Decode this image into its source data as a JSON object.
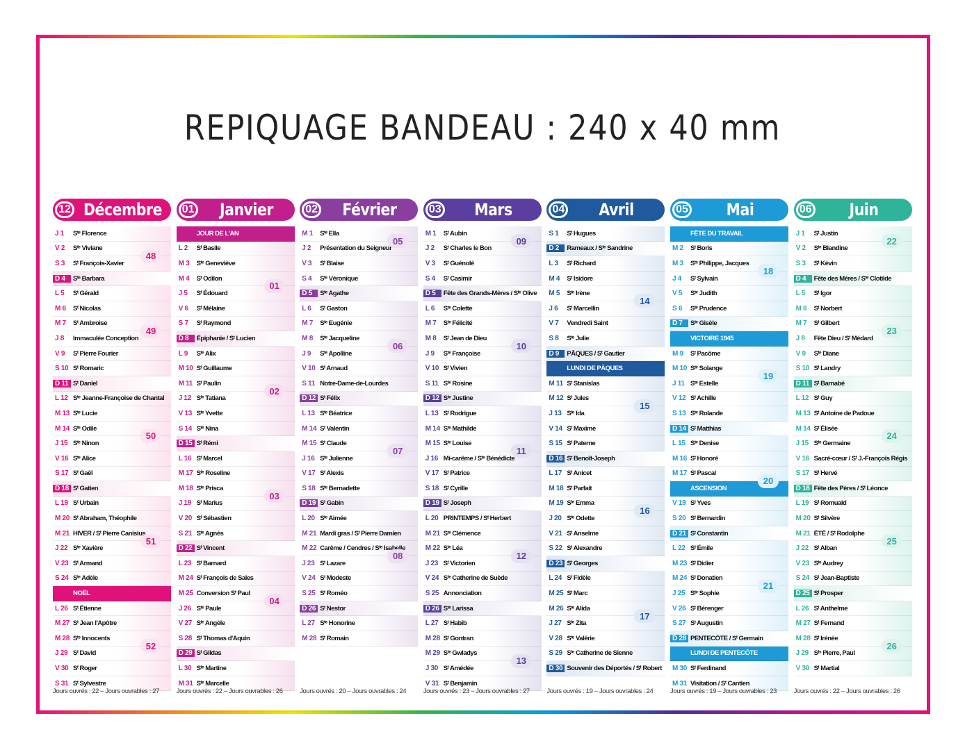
{
  "header": {
    "title": "REPIQUAGE BANDEAU : 240 x 40 mm"
  },
  "months": [
    {
      "num": "12",
      "name": "Décembre",
      "color": "#e0127a",
      "light": "#fbe3ef",
      "weeks": [
        {
          "n": "48",
          "row": 1
        },
        {
          "n": "49",
          "row": 6
        },
        {
          "n": "50",
          "row": 13
        },
        {
          "n": "51",
          "row": 20
        },
        {
          "n": "52",
          "row": 27
        }
      ],
      "days": [
        [
          "J 1",
          "Sᵗᵉ Florence"
        ],
        [
          "V 2",
          "Sᵗᵉ Viviane"
        ],
        [
          "S 3",
          "Sᵗ François-Xavier"
        ],
        [
          "D 4",
          "Sᵗᵉ Barbara"
        ],
        [
          "L 5",
          "Sᵗ Gérald"
        ],
        [
          "M 6",
          "Sᵗ Nicolas"
        ],
        [
          "M 7",
          "Sᵗ Ambroise"
        ],
        [
          "J 8",
          "Immaculée Conception"
        ],
        [
          "V 9",
          "Sᵗ Pierre Fourier"
        ],
        [
          "S 10",
          "Sᵗ Romaric"
        ],
        [
          "D 11",
          "Sᵗ Daniel"
        ],
        [
          "L 12",
          "Sᵗᵉ Jeanne-Françoise de Chantal"
        ],
        [
          "M 13",
          "Sᵗᵉ Lucie"
        ],
        [
          "M 14",
          "Sᵗᵉ Odile"
        ],
        [
          "J 15",
          "Sᵗᵉ Ninon"
        ],
        [
          "V 16",
          "Sᵗᵉ Alice"
        ],
        [
          "S 17",
          "Sᵗ Gaël"
        ],
        [
          "D 18",
          "Sᵗ Gatien"
        ],
        [
          "L 19",
          "Sᵗ Urbain"
        ],
        [
          "M 20",
          "Sᵗ Abraham, Théophile"
        ],
        [
          "M 21",
          "HIVER / Sᵗ Pierre Canisius"
        ],
        [
          "J 22",
          "Sᵗᵉ Xavière"
        ],
        [
          "V 23",
          "Sᵗ Armand"
        ],
        [
          "S 24",
          "Sᵗᵉ Adèle"
        ],
        [
          "D 25",
          "NOËL"
        ],
        [
          "L 26",
          "Sᵗ Étienne"
        ],
        [
          "M 27",
          "Sᵗ Jean l'Apôtre"
        ],
        [
          "M 28",
          "Sᵗˢ Innocents"
        ],
        [
          "J 29",
          "Sᵗ David"
        ],
        [
          "V 30",
          "Sᵗ Roger"
        ],
        [
          "S 31",
          "Sᵗ Sylvestre"
        ]
      ],
      "sundays": [
        3,
        10,
        17
      ],
      "feast": [
        24
      ],
      "footer": "Jours ouvrés : 22 – Jours ouvrables : 27"
    },
    {
      "num": "01",
      "name": "Janvier",
      "color": "#c21f8c",
      "light": "#f6e0ee",
      "weeks": [
        {
          "n": "01",
          "row": 3
        },
        {
          "n": "02",
          "row": 10
        },
        {
          "n": "03",
          "row": 17
        },
        {
          "n": "04",
          "row": 24
        }
      ],
      "days": [
        [
          "D 1",
          "JOUR DE L'AN"
        ],
        [
          "L 2",
          "Sᵗ Basile"
        ],
        [
          "M 3",
          "Sᵗᵉ Geneviève"
        ],
        [
          "M 4",
          "Sᵗ Odilon"
        ],
        [
          "J 5",
          "Sᵗ Édouard"
        ],
        [
          "V 6",
          "Sᵗ Mélaine"
        ],
        [
          "S 7",
          "Sᵗ Raymond"
        ],
        [
          "D 8",
          "Épiphanie / Sᵗ Lucien"
        ],
        [
          "L 9",
          "Sᵗᵉ Alix"
        ],
        [
          "M 10",
          "Sᵗ Guillaume"
        ],
        [
          "M 11",
          "Sᵗ Paulin"
        ],
        [
          "J 12",
          "Sᵗᵉ Tatiana"
        ],
        [
          "V 13",
          "Sᵗᵉ Yvette"
        ],
        [
          "S 14",
          "Sᵗᵉ Nina"
        ],
        [
          "D 15",
          "Sᵗ Rémi"
        ],
        [
          "L 16",
          "Sᵗ Marcel"
        ],
        [
          "M 17",
          "Sᵗᵉ Roseline"
        ],
        [
          "M 18",
          "Sᵗᵉ Prisca"
        ],
        [
          "J 19",
          "Sᵗ Marius"
        ],
        [
          "V 20",
          "Sᵗ Sébastien"
        ],
        [
          "S 21",
          "Sᵗᵉ Agnès"
        ],
        [
          "D 22",
          "Sᵗ Vincent"
        ],
        [
          "L 23",
          "Sᵗ Barnard"
        ],
        [
          "M 24",
          "Sᵗ François de Sales"
        ],
        [
          "M 25",
          "Conversion Sᵗ Paul"
        ],
        [
          "J 26",
          "Sᵗᵉ Paule"
        ],
        [
          "V 27",
          "Sᵗᵉ Angèle"
        ],
        [
          "S 28",
          "Sᵗ Thomas d'Aquin"
        ],
        [
          "D 29",
          "Sᵗ Gildas"
        ],
        [
          "L 30",
          "Sᵗᵉ Martine"
        ],
        [
          "M 31",
          "Sᵗᵉ Marcelle"
        ]
      ],
      "sundays": [
        7,
        14,
        21,
        28
      ],
      "feast": [
        0
      ],
      "footer": "Jours ouvrés : 22 – Jours ouvrables : 26"
    },
    {
      "num": "02",
      "name": "Février",
      "color": "#8a3fa0",
      "light": "#ece2f1",
      "weeks": [
        {
          "n": "05",
          "row": 0
        },
        {
          "n": "06",
          "row": 7
        },
        {
          "n": "07",
          "row": 14
        },
        {
          "n": "08",
          "row": 21
        }
      ],
      "days": [
        [
          "M 1",
          "Sᵗᵉ Ella"
        ],
        [
          "J 2",
          "Présentation du Seigneur"
        ],
        [
          "V 3",
          "Sᵗ Blaise"
        ],
        [
          "S 4",
          "Sᵗᵉ Véronique"
        ],
        [
          "D 5",
          "Sᵗᵉ Agathe"
        ],
        [
          "L 6",
          "Sᵗ Gaston"
        ],
        [
          "M 7",
          "Sᵗᵉ Eugénie"
        ],
        [
          "M 8",
          "Sᵗᵉ Jacqueline"
        ],
        [
          "J 9",
          "Sᵗᵉ Apolline"
        ],
        [
          "V 10",
          "Sᵗ Arnaud"
        ],
        [
          "S 11",
          "Notre-Dame-de-Lourdes"
        ],
        [
          "D 12",
          "Sᵗ Félix"
        ],
        [
          "L 13",
          "Sᵗᵉ Béatrice"
        ],
        [
          "M 14",
          "Sᵗ Valentin"
        ],
        [
          "M 15",
          "Sᵗ Claude"
        ],
        [
          "J 16",
          "Sᵗᵉ Julienne"
        ],
        [
          "V 17",
          "Sᵗ Alexis"
        ],
        [
          "S 18",
          "Sᵗᵉ Bernadette"
        ],
        [
          "D 19",
          "Sᵗ Gabin"
        ],
        [
          "L 20",
          "Sᵗᵉ Aimée"
        ],
        [
          "M 21",
          "Mardi gras / Sᵗ Pierre Damien"
        ],
        [
          "M 22",
          "Carême / Cendres / Sᵗᵉ Isabelle"
        ],
        [
          "J 23",
          "Sᵗ Lazare"
        ],
        [
          "V 24",
          "Sᵗ Modeste"
        ],
        [
          "S 25",
          "Sᵗ Roméo"
        ],
        [
          "D 26",
          "Sᵗ Nestor"
        ],
        [
          "L 27",
          "Sᵗᵉ Honorine"
        ],
        [
          "M 28",
          "Sᵗ Romain"
        ]
      ],
      "sundays": [
        4,
        11,
        18,
        25
      ],
      "feast": [],
      "footer": "Jours ouvrés : 20 – Jours ouvrables : 24"
    },
    {
      "num": "03",
      "name": "Mars",
      "color": "#5a3fa0",
      "light": "#e5e1f1",
      "weeks": [
        {
          "n": "09",
          "row": 0
        },
        {
          "n": "10",
          "row": 7
        },
        {
          "n": "11",
          "row": 14
        },
        {
          "n": "12",
          "row": 21
        },
        {
          "n": "13",
          "row": 28
        }
      ],
      "days": [
        [
          "M 1",
          "Sᵗ Aubin"
        ],
        [
          "J 2",
          "Sᵗ Charles le Bon"
        ],
        [
          "V 3",
          "Sᵗ Guénolé"
        ],
        [
          "S 4",
          "Sᵗ Casimir"
        ],
        [
          "D 5",
          "Fête des Grands-Mères / Sᵗᵉ Olive"
        ],
        [
          "L 6",
          "Sᵗᵉ Colette"
        ],
        [
          "M 7",
          "Sᵗᵉ Félicité"
        ],
        [
          "M 8",
          "Sᵗ Jean de Dieu"
        ],
        [
          "J 9",
          "Sᵗᵉ Françoise"
        ],
        [
          "V 10",
          "Sᵗ Vivien"
        ],
        [
          "S 11",
          "Sᵗᵉ Rosine"
        ],
        [
          "D 12",
          "Sᵗᵉ Justine"
        ],
        [
          "L 13",
          "Sᵗ Rodrigue"
        ],
        [
          "M 14",
          "Sᵗᵉ Mathilde"
        ],
        [
          "M 15",
          "Sᵗᵉ Louise"
        ],
        [
          "J 16",
          "Mi-carême / Sᵗᵉ Bénédicte"
        ],
        [
          "V 17",
          "Sᵗ Patrice"
        ],
        [
          "S 18",
          "Sᵗ Cyrille"
        ],
        [
          "D 19",
          "Sᵗ Joseph"
        ],
        [
          "L 20",
          "PRINTEMPS / Sᵗ Herbert"
        ],
        [
          "M 21",
          "Sᵗᵉ Clémence"
        ],
        [
          "M 22",
          "Sᵗᵉ Léa"
        ],
        [
          "J 23",
          "Sᵗ Victorien"
        ],
        [
          "V 24",
          "Sᵗᵉ Catherine de Suède"
        ],
        [
          "S 25",
          "Annonciation"
        ],
        [
          "D 26",
          "Sᵗᵉ Larissa"
        ],
        [
          "L 27",
          "Sᵗ Habib"
        ],
        [
          "M 28",
          "Sᵗ Gontran"
        ],
        [
          "M 29",
          "Sᵗᵉ Gwladys"
        ],
        [
          "J 30",
          "Sᵗ Amédée"
        ],
        [
          "V 31",
          "Sᵗ Benjamin"
        ]
      ],
      "sundays": [
        4,
        11,
        18,
        25
      ],
      "feast": [],
      "footer": "Jours ouvrés : 23 – Jours ouvrables : 27"
    },
    {
      "num": "04",
      "name": "Avril",
      "color": "#1f5a9e",
      "light": "#dfe8f3",
      "weeks": [
        {
          "n": "14",
          "row": 4
        },
        {
          "n": "15",
          "row": 11
        },
        {
          "n": "16",
          "row": 18
        },
        {
          "n": "17",
          "row": 25
        }
      ],
      "days": [
        [
          "S 1",
          "Sᵗ Hugues"
        ],
        [
          "D 2",
          "Rameaux / Sᵗᵉ Sandrine"
        ],
        [
          "L 3",
          "Sᵗ Richard"
        ],
        [
          "M 4",
          "Sᵗ Isidore"
        ],
        [
          "M 5",
          "Sᵗᵉ Irène"
        ],
        [
          "J 6",
          "Sᵗ Marcellin"
        ],
        [
          "V 7",
          "Vendredi Saint"
        ],
        [
          "S 8",
          "Sᵗᵉ Julie"
        ],
        [
          "D 9",
          "PÂQUES / Sᵗ Gautier"
        ],
        [
          "L 10",
          "LUNDI DE PÂQUES"
        ],
        [
          "M 11",
          "Sᵗ Stanislas"
        ],
        [
          "M 12",
          "Sᵗ Jules"
        ],
        [
          "J 13",
          "Sᵗᵉ Ida"
        ],
        [
          "V 14",
          "Sᵗ Maxime"
        ],
        [
          "S 15",
          "Sᵗ Paterne"
        ],
        [
          "D 16",
          "Sᵗ Benoît-Joseph"
        ],
        [
          "L 17",
          "Sᵗ Anicet"
        ],
        [
          "M 18",
          "Sᵗ Parfait"
        ],
        [
          "M 19",
          "Sᵗᵉ Emma"
        ],
        [
          "J 20",
          "Sᵗᵉ Odette"
        ],
        [
          "V 21",
          "Sᵗ Anselme"
        ],
        [
          "S 22",
          "Sᵗ Alexandre"
        ],
        [
          "D 23",
          "Sᵗ Georges"
        ],
        [
          "L 24",
          "Sᵗ Fidèle"
        ],
        [
          "M 25",
          "Sᵗ Marc"
        ],
        [
          "M 26",
          "Sᵗᵉ Alida"
        ],
        [
          "J 27",
          "Sᵗᵉ Zita"
        ],
        [
          "V 28",
          "Sᵗᵉ Valérie"
        ],
        [
          "S 29",
          "Sᵗᵉ Catherine de Sienne"
        ],
        [
          "D 30",
          "Souvenir des Déportés / Sᵗ Robert"
        ]
      ],
      "sundays": [
        1,
        8,
        15,
        22,
        29
      ],
      "feast": [
        9
      ],
      "footer": "Jours ouvrés : 19 – Jours ouvrables : 24"
    },
    {
      "num": "05",
      "name": "Mai",
      "color": "#1e9ad6",
      "light": "#dff1fa",
      "weeks": [
        {
          "n": "18",
          "row": 2
        },
        {
          "n": "19",
          "row": 9
        },
        {
          "n": "20",
          "row": 16
        },
        {
          "n": "21",
          "row": 23
        }
      ],
      "days": [
        [
          "L 1",
          "FÊTE DU TRAVAIL"
        ],
        [
          "M 2",
          "Sᵗ Boris"
        ],
        [
          "M 3",
          "Sᵗˢ Philippe, Jacques"
        ],
        [
          "J 4",
          "Sᵗ Sylvain"
        ],
        [
          "V 5",
          "Sᵗᵉ Judith"
        ],
        [
          "S 6",
          "Sᵗᵉ Prudence"
        ],
        [
          "D 7",
          "Sᵗᵉ Gisèle"
        ],
        [
          "L 8",
          "VICTOIRE 1945"
        ],
        [
          "M 9",
          "Sᵗ Pacôme"
        ],
        [
          "M 10",
          "Sᵗᵉ Solange"
        ],
        [
          "J 11",
          "Sᵗᵉ Estelle"
        ],
        [
          "V 12",
          "Sᵗ Achille"
        ],
        [
          "S 13",
          "Sᵗᵉ Rolande"
        ],
        [
          "D 14",
          "Sᵗ Matthias"
        ],
        [
          "L 15",
          "Sᵗᵉ Denise"
        ],
        [
          "M 16",
          "Sᵗ Honoré"
        ],
        [
          "M 17",
          "Sᵗ Pascal"
        ],
        [
          "J 18",
          "ASCENSION"
        ],
        [
          "V 19",
          "Sᵗ Yves"
        ],
        [
          "S 20",
          "Sᵗ Bernardin"
        ],
        [
          "D 21",
          "Sᵗ Constantin"
        ],
        [
          "L 22",
          "Sᵗ Émile"
        ],
        [
          "M 23",
          "Sᵗ Didier"
        ],
        [
          "M 24",
          "Sᵗ Donatien"
        ],
        [
          "J 25",
          "Sᵗᵉ Sophie"
        ],
        [
          "V 26",
          "Sᵗ Bérenger"
        ],
        [
          "S 27",
          "Sᵗ Augustin"
        ],
        [
          "D 28",
          "PENTECÔTE / Sᵗ Germain"
        ],
        [
          "L 29",
          "LUNDI DE PENTECÔTE"
        ],
        [
          "M 30",
          "Sᵗ Ferdinand"
        ],
        [
          "M 31",
          "Visitation / Sᵗ Cantien"
        ]
      ],
      "sundays": [
        6,
        13,
        20,
        27
      ],
      "feast": [
        0,
        7,
        17,
        28
      ],
      "footer": "Jours ouvrés : 19 – Jours ouvrables : 23"
    },
    {
      "num": "06",
      "name": "Juin",
      "color": "#2fb39a",
      "light": "#ddf3ee",
      "weeks": [
        {
          "n": "22",
          "row": 0
        },
        {
          "n": "23",
          "row": 6
        },
        {
          "n": "24",
          "row": 13
        },
        {
          "n": "25",
          "row": 20
        },
        {
          "n": "26",
          "row": 27
        }
      ],
      "days": [
        [
          "J 1",
          "Sᵗ Justin"
        ],
        [
          "V 2",
          "Sᵗᵉ Blandine"
        ],
        [
          "S 3",
          "Sᵗ Kévin"
        ],
        [
          "D 4",
          "Fête des Mères / Sᵗᵉ Clotilde"
        ],
        [
          "L 5",
          "Sᵗ Igor"
        ],
        [
          "M 6",
          "Sᵗ Norbert"
        ],
        [
          "M 7",
          "Sᵗ Gilbert"
        ],
        [
          "J 8",
          "Fête Dieu / Sᵗ Médard"
        ],
        [
          "V 9",
          "Sᵗᵉ Diane"
        ],
        [
          "S 10",
          "Sᵗ Landry"
        ],
        [
          "D 11",
          "Sᵗ Barnabé"
        ],
        [
          "L 12",
          "Sᵗ Guy"
        ],
        [
          "M 13",
          "Sᵗ Antoine de Padoue"
        ],
        [
          "M 14",
          "Sᵗ Élisée"
        ],
        [
          "J 15",
          "Sᵗᵉ Germaine"
        ],
        [
          "V 16",
          "Sacré-cœur / Sᵗ J.-François Régis"
        ],
        [
          "S 17",
          "Sᵗ Hervé"
        ],
        [
          "D 18",
          "Fête des Pères / Sᵗ Léonce"
        ],
        [
          "L 19",
          "Sᵗ Romuald"
        ],
        [
          "M 20",
          "Sᵗ Silvère"
        ],
        [
          "M 21",
          "ÉTÉ / Sᵗ Rodolphe"
        ],
        [
          "J 22",
          "Sᵗ Alban"
        ],
        [
          "V 23",
          "Sᵗᵉ Audrey"
        ],
        [
          "S 24",
          "Sᵗ Jean-Baptiste"
        ],
        [
          "D 25",
          "Sᵗ Prosper"
        ],
        [
          "L 26",
          "Sᵗ Anthelme"
        ],
        [
          "M 27",
          "Sᵗ Fernand"
        ],
        [
          "M 28",
          "Sᵗ Irénée"
        ],
        [
          "J 29",
          "Sᵗˢ Pierre, Paul"
        ],
        [
          "V 30",
          "Sᵗ Martial"
        ]
      ],
      "sundays": [
        3,
        10,
        17,
        24
      ],
      "feast": [],
      "footer": "Jours ouvrés : 22 – Jours ouvrables : 26"
    }
  ]
}
